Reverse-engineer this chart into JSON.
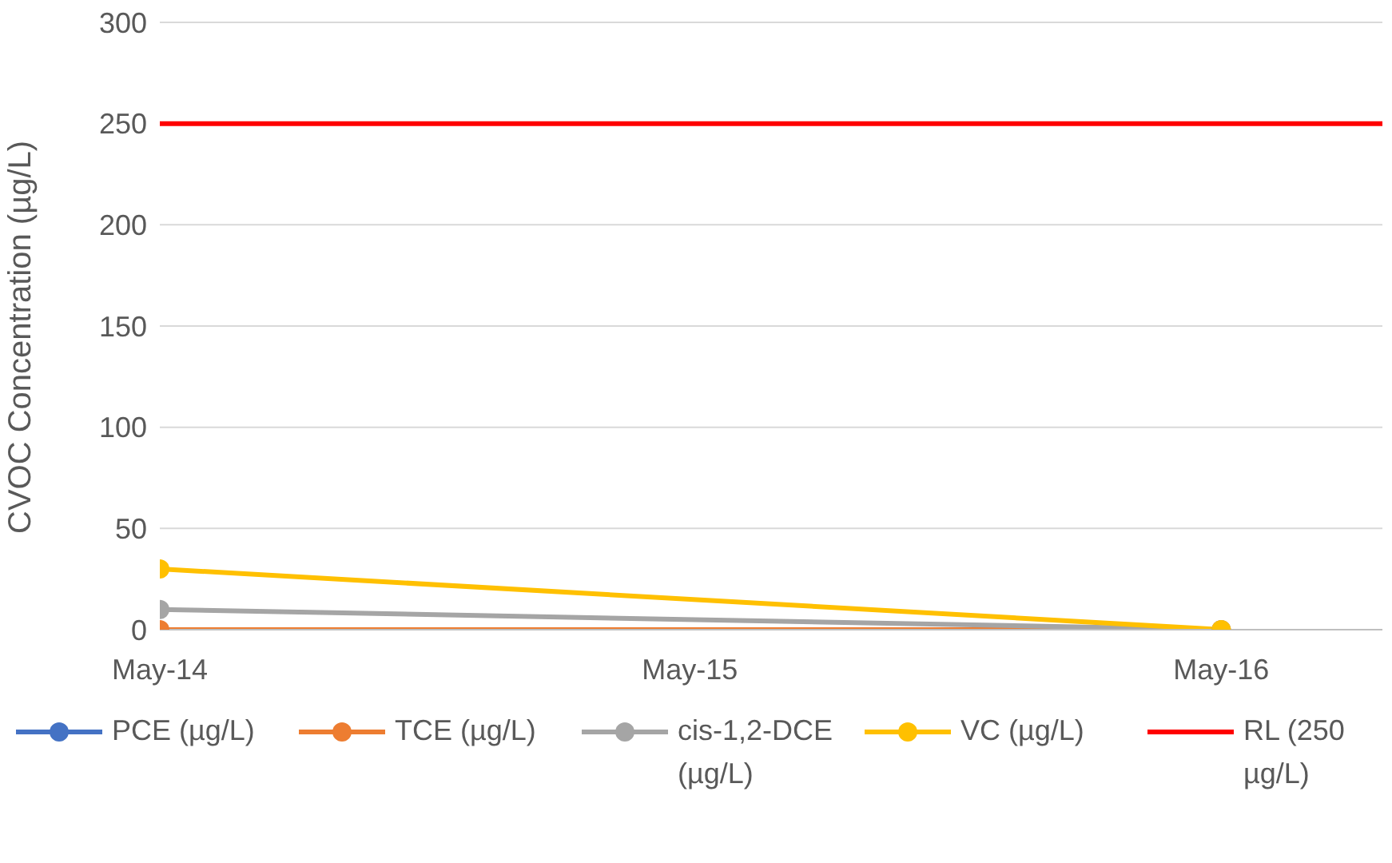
{
  "chart_data": {
    "type": "line",
    "ylabel": "CVOC Concentration (µg/L)",
    "x": [
      "2014-05",
      "2016-05"
    ],
    "series": [
      {
        "name": "PCE (µg/L)",
        "color": "#4472c4",
        "values": [
          null,
          null
        ]
      },
      {
        "name": "TCE (µg/L)",
        "color": "#ed7d31",
        "values": [
          0,
          0
        ]
      },
      {
        "name": "cis-1,2-DCE (µg/L)",
        "color": "#a5a5a5",
        "values": [
          10,
          0
        ]
      },
      {
        "name": "VC (µg/L)",
        "color": "#ffc000",
        "values": [
          30,
          0
        ]
      }
    ],
    "ref_lines": [
      {
        "axis": "y",
        "value": 250,
        "label": "RL (250 µg/L)",
        "color": "#ff0000"
      }
    ],
    "xlim": [
      "2014-05-01",
      "2016-08-20"
    ],
    "xticks": [
      {
        "value": "2014-05",
        "label": "May-14"
      },
      {
        "value": "2015-05",
        "label": "May-15"
      },
      {
        "value": "2016-05",
        "label": "May-16"
      }
    ],
    "ylim": [
      0,
      300
    ],
    "yticks": [
      0,
      50,
      100,
      150,
      200,
      250,
      300
    ],
    "grid": "y",
    "legend": "bottom",
    "marker": "circle",
    "line_style": "solid"
  }
}
